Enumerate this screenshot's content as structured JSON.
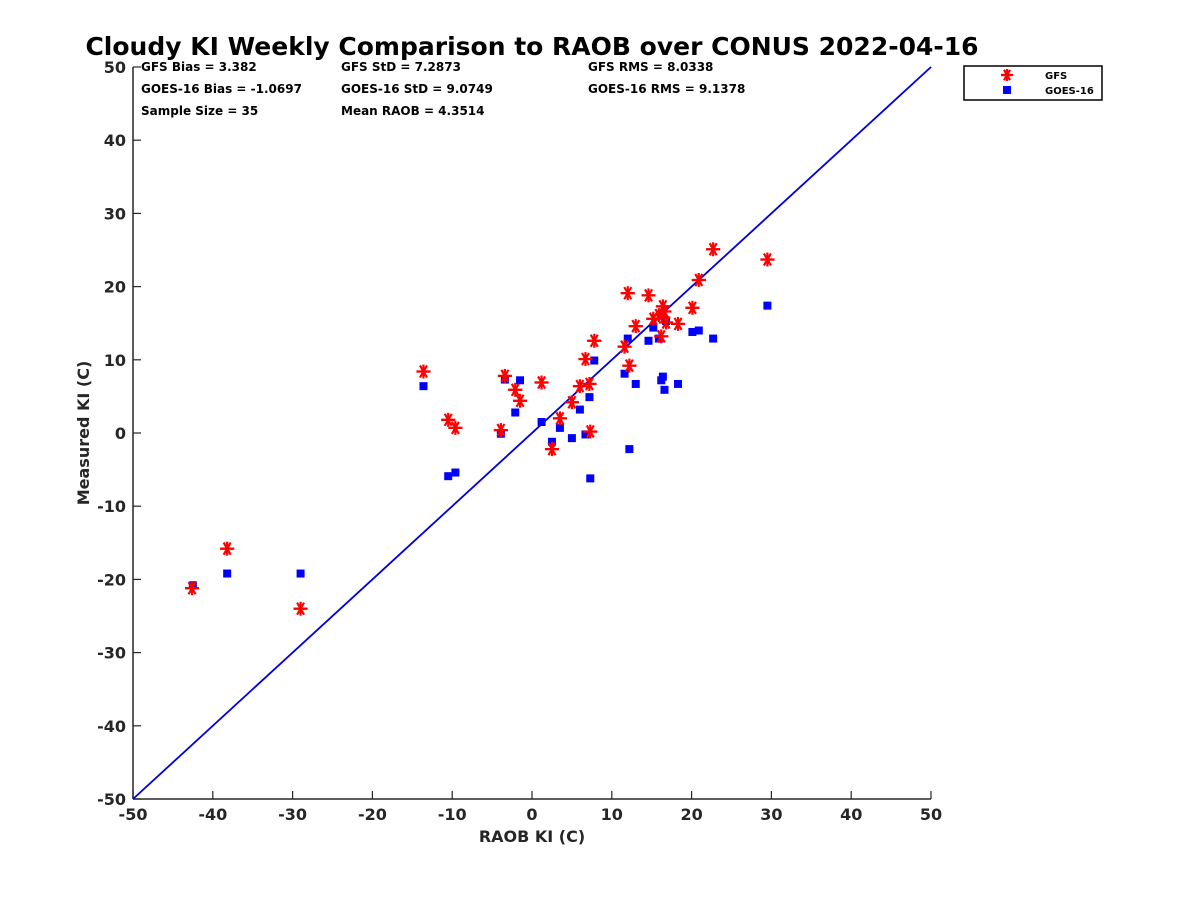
{
  "chart_data": {
    "type": "scatter",
    "title": "Cloudy KI Weekly Comparison to RAOB over CONUS 2022-04-16",
    "xlabel": "RAOB KI (C)",
    "ylabel": "Measured KI (C)",
    "xlim": [
      -50,
      50
    ],
    "ylim": [
      -50,
      50
    ],
    "xticks": [
      "-50",
      "-40",
      "-30",
      "-20",
      "-10",
      "0",
      "10",
      "20",
      "30",
      "40",
      "50"
    ],
    "yticks": [
      "-50",
      "-40",
      "-30",
      "-20",
      "-10",
      "0",
      "10",
      "20",
      "30",
      "40",
      "50"
    ],
    "grid": false,
    "legend_position": "outside top-right",
    "reference_line": {
      "x": [
        -50,
        50
      ],
      "y": [
        -50,
        50
      ],
      "color": "#0000dd"
    },
    "stats": {
      "gfs_bias": "GFS Bias = 3.382",
      "goes_bias": "GOES-16 Bias = -1.0697",
      "sample_size": "Sample Size = 35",
      "gfs_std": "GFS StD = 7.2873",
      "goes_std": "GOES-16 StD = 9.0749",
      "mean_raob": "Mean RAOB = 4.3514",
      "gfs_rms": "GFS RMS = 8.0338",
      "goes_rms": "GOES-16 RMS = 9.1378"
    },
    "series": [
      {
        "name": "GFS",
        "marker": "asterisk",
        "color": "#ff0000",
        "x": [
          -42.6,
          -38.2,
          -29.0,
          -13.6,
          -10.5,
          -9.6,
          -3.9,
          -3.4,
          -2.1,
          -1.5,
          1.2,
          2.5,
          3.5,
          5.0,
          6.0,
          6.7,
          7.2,
          7.3,
          7.8,
          11.6,
          12.0,
          12.2,
          13.0,
          14.6,
          15.2,
          15.9,
          16.2,
          16.4,
          16.6,
          16.8,
          18.3,
          20.1,
          20.9,
          22.7,
          29.5
        ],
        "y": [
          -21.2,
          -15.8,
          -24.0,
          8.4,
          1.8,
          0.7,
          0.4,
          7.8,
          5.9,
          4.4,
          6.9,
          -2.2,
          2.0,
          4.2,
          6.4,
          10.1,
          6.7,
          0.2,
          12.6,
          11.8,
          19.1,
          9.2,
          14.6,
          18.8,
          15.6,
          16.1,
          13.2,
          17.3,
          16.6,
          15.1,
          14.9,
          17.1,
          20.9,
          25.1,
          23.7
        ]
      },
      {
        "name": "GOES-16",
        "marker": "square",
        "color": "#0000ff",
        "x": [
          -42.5,
          -38.2,
          -29.0,
          -13.6,
          -10.5,
          -9.6,
          -3.9,
          -3.4,
          -2.1,
          -1.5,
          1.2,
          2.5,
          3.5,
          5.0,
          6.0,
          6.7,
          7.2,
          7.3,
          7.8,
          11.6,
          12.0,
          12.2,
          13.0,
          14.6,
          15.2,
          15.9,
          16.2,
          16.4,
          16.6,
          16.8,
          18.3,
          20.1,
          20.9,
          22.7,
          29.5
        ],
        "y": [
          -20.8,
          -19.2,
          -19.2,
          6.4,
          -5.9,
          -5.4,
          -0.1,
          7.3,
          2.8,
          7.2,
          1.5,
          -1.2,
          0.7,
          -0.7,
          3.2,
          -0.2,
          4.9,
          -6.2,
          9.9,
          8.1,
          12.9,
          -2.2,
          6.7,
          12.6,
          14.4,
          12.9,
          7.2,
          7.7,
          5.9,
          15.3,
          6.7,
          13.8,
          14.0,
          12.9,
          17.4
        ]
      }
    ]
  }
}
